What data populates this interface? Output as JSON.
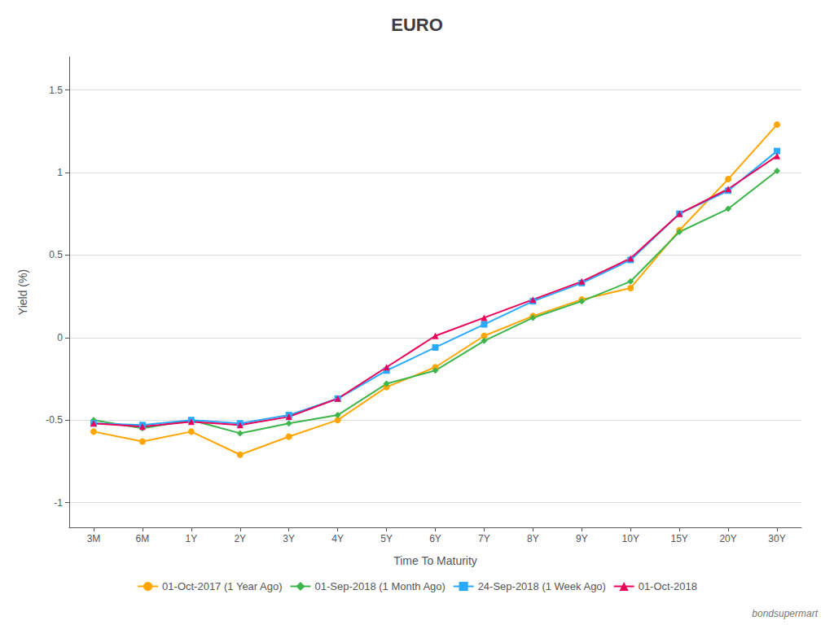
{
  "chart_data": {
    "type": "line",
    "title": "EURO",
    "x_label": "Time To Maturity",
    "y_label": "Yield (%)",
    "annotations": [
      "bondsupermart"
    ],
    "categories": [
      "3M",
      "6M",
      "1Y",
      "2Y",
      "3Y",
      "4Y",
      "5Y",
      "6Y",
      "7Y",
      "8Y",
      "9Y",
      "10Y",
      "15Y",
      "20Y",
      "30Y"
    ],
    "series": [
      {
        "name": "01-Oct-2017 (1 Year Ago)",
        "color": "#FFA500",
        "marker": "circle",
        "values": [
          -0.57,
          -0.63,
          -0.57,
          -0.71,
          -0.6,
          -0.5,
          -0.3,
          -0.18,
          0.01,
          0.13,
          0.23,
          0.3,
          0.65,
          0.96,
          1.29
        ]
      },
      {
        "name": "01-Sep-2018 (1 Month Ago)",
        "color": "#3cb54a",
        "marker": "diamond",
        "values": [
          -0.5,
          -0.55,
          -0.5,
          -0.58,
          -0.52,
          -0.47,
          -0.28,
          -0.2,
          -0.02,
          0.12,
          0.22,
          0.34,
          0.64,
          0.78,
          1.01
        ]
      },
      {
        "name": "24-Sep-2018 (1 Week Ago)",
        "color": "#29aaff",
        "marker": "square",
        "values": [
          -0.52,
          -0.53,
          -0.5,
          -0.52,
          -0.47,
          -0.37,
          -0.2,
          -0.06,
          0.08,
          0.22,
          0.33,
          0.47,
          0.75,
          0.89,
          1.13
        ]
      },
      {
        "name": "01-Oct-2018",
        "color": "#e8005a",
        "marker": "triangle",
        "values": [
          -0.52,
          -0.54,
          -0.51,
          -0.53,
          -0.48,
          -0.37,
          -0.18,
          0.01,
          0.12,
          0.23,
          0.34,
          0.48,
          0.75,
          0.9,
          1.1
        ]
      }
    ],
    "ylim": [
      -1.15,
      1.7
    ],
    "yticks": [
      -1,
      -0.5,
      0,
      0.5,
      1,
      1.5
    ],
    "grid": true,
    "legend": "bottom"
  }
}
